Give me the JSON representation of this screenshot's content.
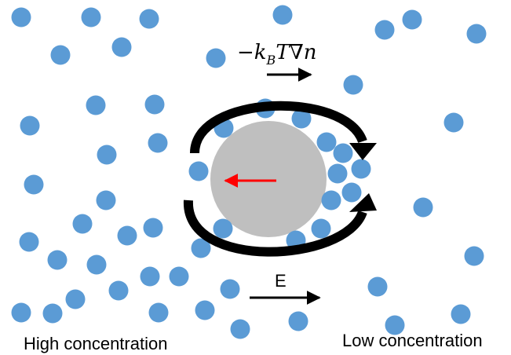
{
  "colors": {
    "particle": "#5b9bd5",
    "sphere": "#bfbfbf",
    "arrow": "#000000",
    "velocity_arrow": "#ff0000"
  },
  "labels": {
    "left_region": "High concentration",
    "right_region": "Low concentration",
    "field_label": "E",
    "gradient_force": {
      "prefix": "−k",
      "subscript": "B",
      "suffix": "T∇n"
    }
  }
}
